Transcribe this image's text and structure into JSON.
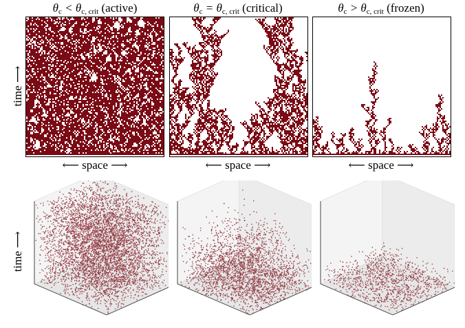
{
  "panels_2d": [
    {
      "title_pre": "θ",
      "title_sub1": "c",
      "title_op": " < θ",
      "title_sub2": "c, crit",
      "title_post": " (active)",
      "color": "#7a0a14",
      "density": 0.55,
      "front": [
        1,
        1,
        1,
        1,
        1,
        1,
        1,
        1,
        1,
        1
      ]
    },
    {
      "title_pre": "θ",
      "title_sub1": "c",
      "title_op": " = θ",
      "title_sub2": "c, crit",
      "title_post": " (critical)",
      "color": "#7a0a14",
      "density": 0.35
    },
    {
      "title_pre": "θ",
      "title_sub1": "c",
      "title_op": " > θ",
      "title_sub2": "c, crit",
      "title_post": " (frozen)",
      "color": "#7a0a14",
      "density": 0.3
    }
  ],
  "xlabel": "⟵  space  ⟶",
  "ylabel": "time  ⟶",
  "colors": {
    "active_site": "#7a0a14",
    "frame": "#000000",
    "pane": "#f2f2f2"
  }
}
